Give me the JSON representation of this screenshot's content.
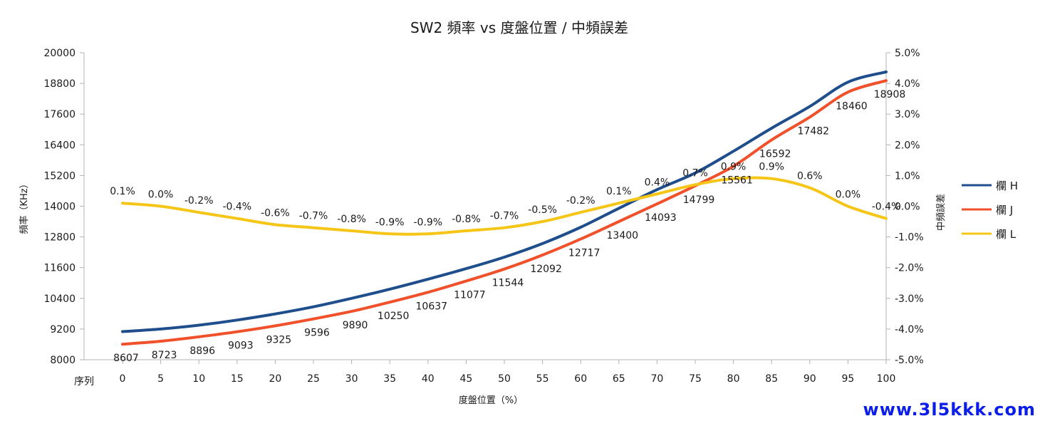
{
  "chart_data": {
    "type": "line",
    "title": "SW2 頻率 vs 度盤位置 / 中頻誤差",
    "xlabel": "度盤位置（%）",
    "ylabel": "頻率（KHz）",
    "y2label": "中頻誤差",
    "category_label": "序列",
    "x": [
      0,
      5,
      10,
      15,
      20,
      25,
      30,
      35,
      40,
      45,
      50,
      55,
      60,
      65,
      70,
      75,
      80,
      85,
      90,
      95,
      100
    ],
    "ylim": [
      8000,
      20000
    ],
    "yticks": [
      8000,
      9200,
      10400,
      11600,
      12800,
      14000,
      15200,
      16400,
      17600,
      18800,
      20000
    ],
    "y2lim": [
      -5.0,
      5.0
    ],
    "y2ticks": [
      "5.0%",
      "4.0%",
      "3.0%",
      "2.0%",
      "1.0%",
      "0.0%",
      "-1.0%",
      "-2.0%",
      "-3.0%",
      "-4.0%",
      "-5.0%"
    ],
    "grid": false,
    "legend_position": "right",
    "series": [
      {
        "name": "欄 H",
        "axis": "left",
        "color": "#1f4e8c",
        "values": [
          9100,
          9200,
          9350,
          9550,
          9790,
          10070,
          10400,
          10760,
          11150,
          11560,
          12010,
          12540,
          13180,
          13920,
          14650,
          15300,
          16150,
          17050,
          17900,
          18850,
          19250
        ],
        "labels": []
      },
      {
        "name": "欄 J",
        "axis": "left",
        "color": "#f0502a",
        "values": [
          8607,
          8723,
          8896,
          9093,
          9325,
          9596,
          9890,
          10250,
          10637,
          11077,
          11544,
          12092,
          12717,
          13400,
          14093,
          14799,
          15561,
          16592,
          17482,
          18460,
          18908
        ],
        "labels": [
          "8607",
          "8723",
          "8896",
          "9093",
          "9325",
          "9596",
          "9890",
          "10250",
          "10637",
          "11077",
          "11544",
          "12092",
          "12717",
          "13400",
          "14093",
          "14799",
          "15561",
          "16592",
          "17482",
          "18460",
          "18908"
        ]
      },
      {
        "name": "欄 L",
        "axis": "right",
        "color": "#f5c518",
        "values": [
          0.1,
          0.0,
          -0.2,
          -0.4,
          -0.6,
          -0.7,
          -0.8,
          -0.9,
          -0.9,
          -0.8,
          -0.7,
          -0.5,
          -0.2,
          0.1,
          0.4,
          0.7,
          0.9,
          0.9,
          0.6,
          0.0,
          -0.4
        ],
        "labels": [
          "0.1%",
          "0.0%",
          "-0.2%",
          "-0.4%",
          "-0.6%",
          "-0.7%",
          "-0.8%",
          "-0.9%",
          "-0.9%",
          "-0.8%",
          "-0.7%",
          "-0.5%",
          "-0.2%",
          "0.1%",
          "0.4%",
          "0.7%",
          "0.9%",
          "0.9%",
          "0.6%",
          "0.0%",
          "-0.4%"
        ]
      }
    ]
  },
  "watermark": "www.3l5kkk.com"
}
